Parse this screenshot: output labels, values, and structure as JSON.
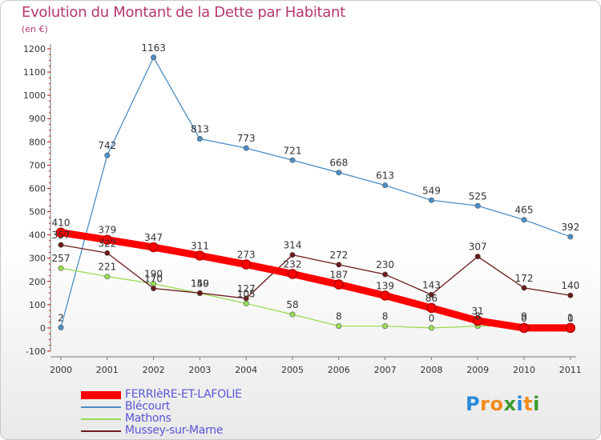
{
  "title": "Evolution du Montant de la Dette par Habitant",
  "subtitle": "(en €)",
  "logo": "Proxiti",
  "chart_data": {
    "type": "line",
    "title": "Evolution du Montant de la Dette par Habitant",
    "ylabel": "(en €)",
    "xlabel": "",
    "x": [
      "2000",
      "2001",
      "2002",
      "2003",
      "2004",
      "2005",
      "2006",
      "2007",
      "2008",
      "2009",
      "2010",
      "2011"
    ],
    "ylim": [
      -100,
      1200
    ],
    "yticks": [
      -100,
      0,
      100,
      200,
      300,
      400,
      500,
      600,
      700,
      800,
      900,
      1000,
      1100,
      1200
    ],
    "grid": false,
    "legend": "bottom-left",
    "series": [
      {
        "name": "FERRIèRE-ET-LAFOLIE",
        "color": "#ff0000",
        "values": [
          410,
          379,
          347,
          311,
          273,
          232,
          187,
          139,
          86,
          31,
          0,
          0
        ],
        "labels": [
          "410",
          "379",
          "347",
          "311",
          "273",
          "232",
          "187",
          "139",
          "86",
          "31",
          "0",
          "0"
        ]
      },
      {
        "name": "Blécourt",
        "color": "#4d8ec6",
        "values": [
          2,
          742,
          1163,
          813,
          773,
          721,
          668,
          613,
          549,
          525,
          465,
          392
        ],
        "labels": [
          "2",
          "742",
          "1163",
          "813",
          "773",
          "721",
          "668",
          "613",
          "549",
          "525",
          "465",
          "392"
        ]
      },
      {
        "name": "Mathons",
        "color": "#99dd55",
        "values": [
          257,
          221,
          190,
          149,
          105,
          58,
          8,
          8,
          0,
          8,
          9,
          1
        ],
        "labels": [
          "257",
          "221",
          "190",
          "149",
          "105",
          "58",
          "8",
          "8",
          "0",
          "8",
          "9",
          "1"
        ]
      },
      {
        "name": "Mussey-sur-Marne",
        "color": "#6b1a1a",
        "values": [
          357,
          322,
          170,
          150,
          127,
          314,
          272,
          230,
          143,
          307,
          172,
          140
        ],
        "labels": [
          "357",
          "322",
          "170",
          "150",
          "127",
          "314",
          "272",
          "230",
          "143",
          "307",
          "172",
          "140"
        ]
      }
    ]
  }
}
